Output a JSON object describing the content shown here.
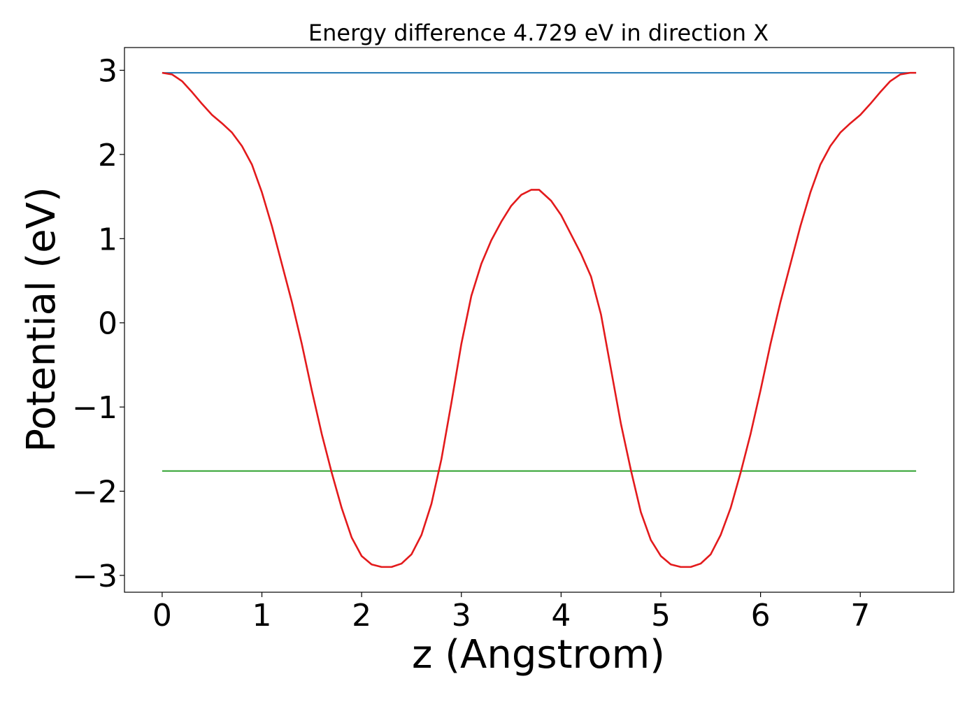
{
  "chart_data": {
    "type": "line",
    "title": "Energy difference 4.729 eV in direction X",
    "xlabel": "z (Angstrom)",
    "ylabel": "Potential (eV)",
    "xlim": [
      -0.378,
      7.938
    ],
    "ylim": [
      -3.2,
      3.27
    ],
    "xticks": [
      0,
      1,
      2,
      3,
      4,
      5,
      6,
      7
    ],
    "xtick_labels": [
      "0",
      "1",
      "2",
      "3",
      "4",
      "5",
      "6",
      "7"
    ],
    "yticks": [
      -3,
      -2,
      -1,
      0,
      1,
      2,
      3
    ],
    "ytick_labels": [
      "−3",
      "−2",
      "−1",
      "0",
      "1",
      "2",
      "3"
    ],
    "grid": false,
    "legend": "none",
    "series": [
      {
        "color": "#1f77b4",
        "x": [
          0,
          7.56
        ],
        "y": [
          2.97,
          2.97
        ]
      },
      {
        "color": "#2ca02c",
        "x": [
          0,
          7.56
        ],
        "y": [
          -1.76,
          -1.76
        ]
      },
      {
        "color": "#e31a1c",
        "x": [
          0.0,
          0.1,
          0.2,
          0.3,
          0.4,
          0.5,
          0.6,
          0.7,
          0.8,
          0.9,
          1.0,
          1.1,
          1.2,
          1.3,
          1.4,
          1.5,
          1.6,
          1.7,
          1.8,
          1.9,
          2.0,
          2.1,
          2.2,
          2.3,
          2.4,
          2.5,
          2.6,
          2.7,
          2.8,
          2.9,
          3.0,
          3.1,
          3.2,
          3.3,
          3.4,
          3.5,
          3.6,
          3.7,
          3.78,
          3.9,
          4.0,
          4.1,
          4.2,
          4.3,
          4.4,
          4.5,
          4.6,
          4.7,
          4.8,
          4.9,
          5.0,
          5.1,
          5.2,
          5.3,
          5.4,
          5.5,
          5.6,
          5.7,
          5.8,
          5.9,
          6.0,
          6.1,
          6.2,
          6.3,
          6.4,
          6.5,
          6.6,
          6.7,
          6.8,
          6.9,
          7.0,
          7.1,
          7.2,
          7.3,
          7.4,
          7.5,
          7.56
        ],
        "y": [
          2.97,
          2.95,
          2.87,
          2.74,
          2.6,
          2.47,
          2.37,
          2.26,
          2.1,
          1.88,
          1.55,
          1.15,
          0.7,
          0.25,
          -0.25,
          -0.8,
          -1.32,
          -1.78,
          -2.2,
          -2.55,
          -2.77,
          -2.87,
          -2.9,
          -2.9,
          -2.86,
          -2.75,
          -2.52,
          -2.15,
          -1.62,
          -0.95,
          -0.25,
          0.32,
          0.7,
          0.98,
          1.2,
          1.39,
          1.52,
          1.58,
          1.58,
          1.45,
          1.28,
          1.05,
          0.82,
          0.55,
          0.1,
          -0.55,
          -1.2,
          -1.75,
          -2.25,
          -2.58,
          -2.77,
          -2.87,
          -2.9,
          -2.9,
          -2.86,
          -2.75,
          -2.52,
          -2.2,
          -1.78,
          -1.32,
          -0.8,
          -0.25,
          0.25,
          0.7,
          1.15,
          1.55,
          1.88,
          2.1,
          2.26,
          2.37,
          2.47,
          2.6,
          2.74,
          2.87,
          2.95,
          2.97,
          2.97
        ]
      }
    ]
  }
}
